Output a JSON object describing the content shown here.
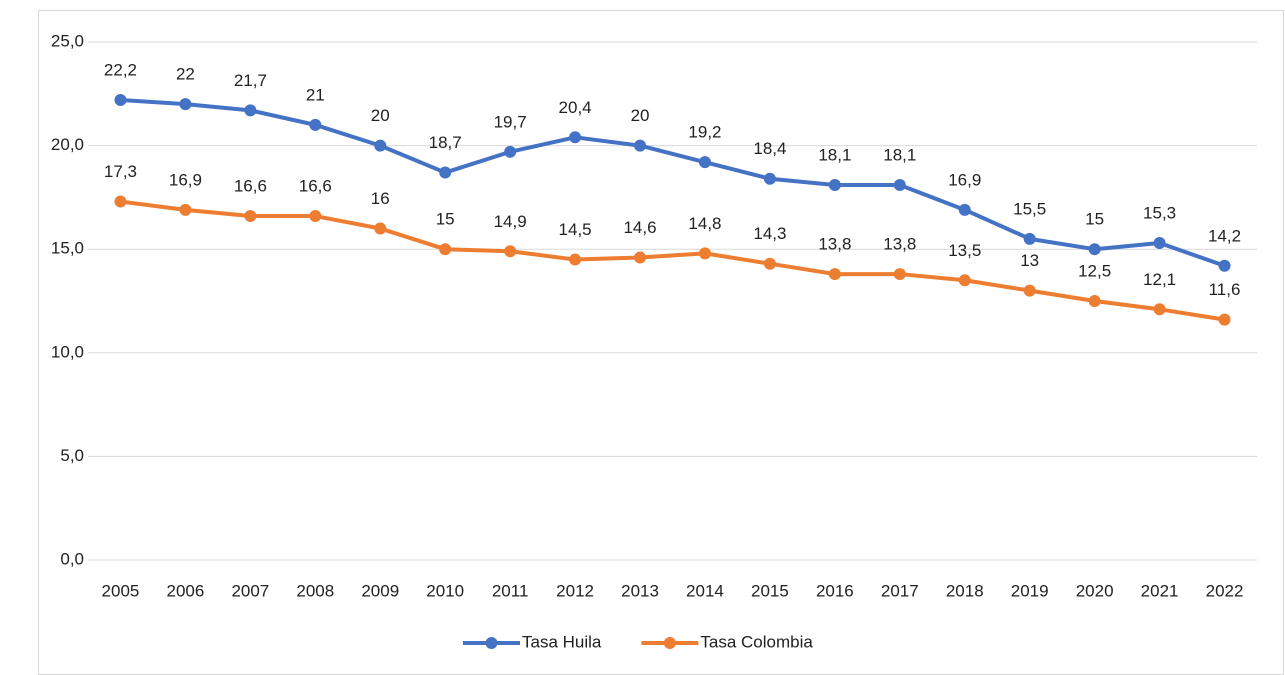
{
  "chart_data": {
    "type": "line",
    "categories": [
      "2005",
      "2006",
      "2007",
      "2008",
      "2009",
      "2010",
      "2011",
      "2012",
      "2013",
      "2014",
      "2015",
      "2016",
      "2017",
      "2018",
      "2019",
      "2020",
      "2021",
      "2022"
    ],
    "series": [
      {
        "name": "Tasa Huila",
        "color": "#4472c4",
        "values": [
          22.2,
          22,
          21.7,
          21,
          20,
          18.7,
          19.7,
          20.4,
          20,
          19.2,
          18.4,
          18.1,
          18.1,
          16.9,
          15.5,
          15,
          15.3,
          14.2
        ],
        "value_labels": [
          "22,2",
          "22",
          "21,7",
          "21",
          "20",
          "18,7",
          "19,7",
          "20,4",
          "20",
          "19,2",
          "18,4",
          "18,1",
          "18,1",
          "16,9",
          "15,5",
          "15",
          "15,3",
          "14,2"
        ]
      },
      {
        "name": "Tasa Colombia",
        "color": "#ed7d31",
        "values": [
          17.3,
          16.9,
          16.6,
          16.6,
          16,
          15,
          14.9,
          14.5,
          14.6,
          14.8,
          14.3,
          13.8,
          13.8,
          13.5,
          13,
          12.5,
          12.1,
          11.6
        ],
        "value_labels": [
          "17,3",
          "16,9",
          "16,6",
          "16,6",
          "16",
          "15",
          "14,9",
          "14,5",
          "14,6",
          "14,8",
          "14,3",
          "13,8",
          "13,8",
          "13,5",
          "13",
          "12,5",
          "12,1",
          "11,6"
        ]
      }
    ],
    "ylim": [
      0,
      25
    ],
    "yticks": [
      {
        "value": 0,
        "label": "0,0"
      },
      {
        "value": 5,
        "label": "5,0"
      },
      {
        "value": 10,
        "label": "10,0"
      },
      {
        "value": 15,
        "label": "15,0"
      },
      {
        "value": 20,
        "label": "20,0"
      },
      {
        "value": 25,
        "label": "25,0"
      }
    ],
    "grid": true,
    "legend": "bottom"
  }
}
